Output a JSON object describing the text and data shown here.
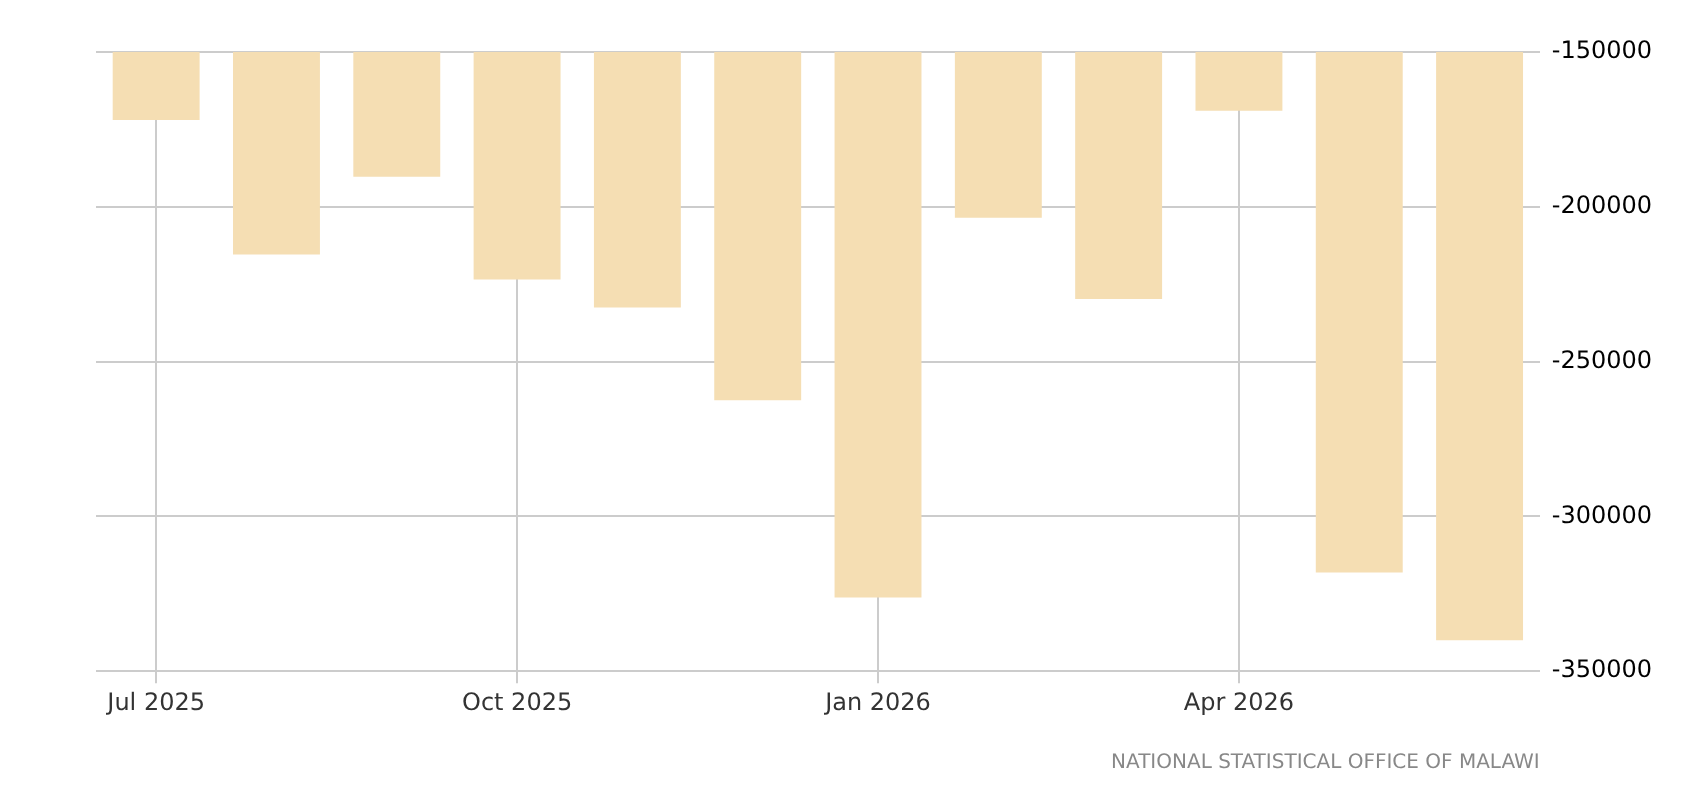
{
  "chart_data": {
    "type": "bar",
    "categories": [
      "Jul 2025",
      null,
      null,
      "Oct 2025",
      null,
      null,
      "Jan 2026",
      null,
      null,
      "Apr 2026",
      null,
      null
    ],
    "values": [
      -172000,
      -215400,
      -190300,
      -223500,
      -232500,
      -262500,
      -326200,
      -203500,
      -229800,
      -169000,
      -318100,
      -340000
    ],
    "color": "#f5deb3",
    "ylim": [
      -350000,
      -150000
    ],
    "yticks": [
      -350000,
      -300000,
      -250000,
      -200000,
      -150000
    ],
    "grid": true,
    "legend": false,
    "annotations": [
      "NATIONAL STATISTICAL OFFICE OF MALAWI"
    ]
  }
}
